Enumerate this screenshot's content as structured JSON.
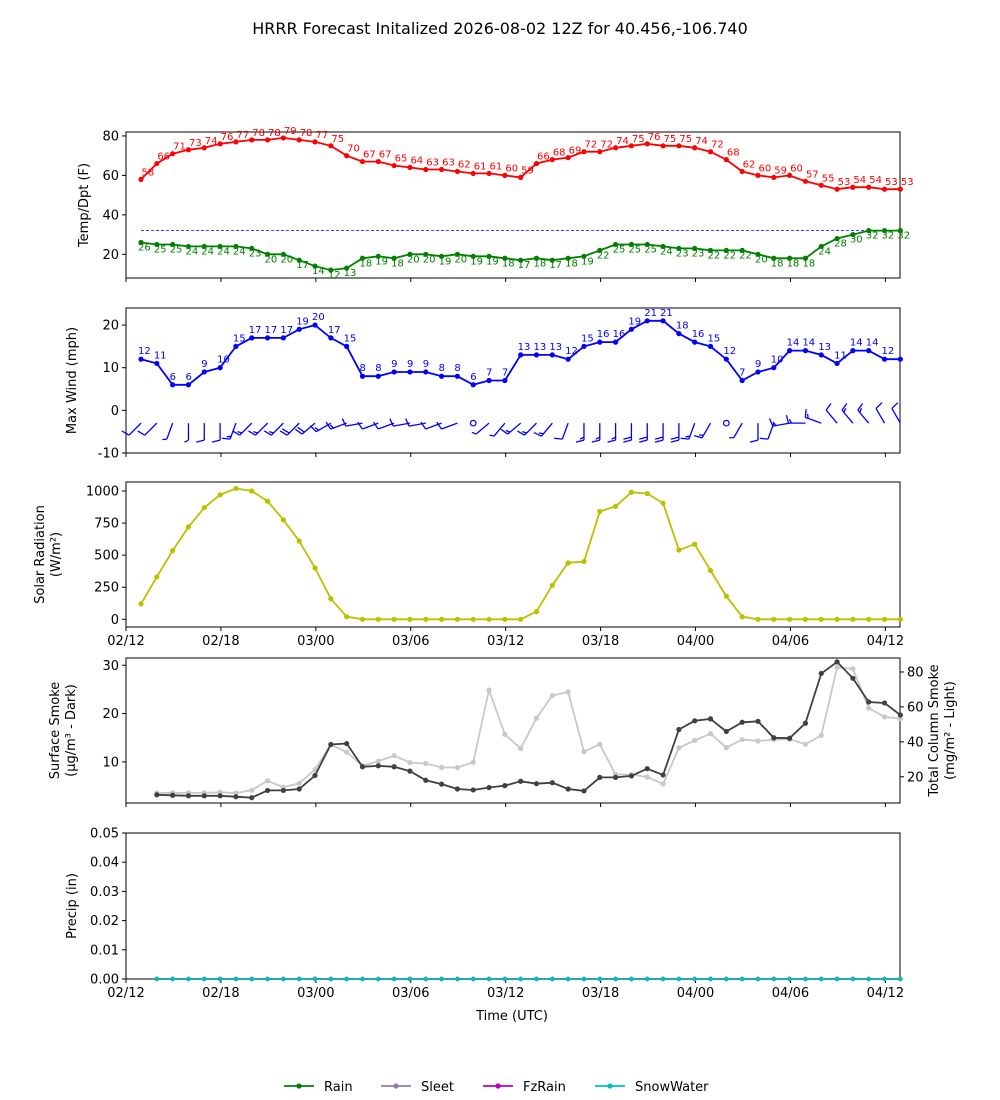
{
  "title": "HRRR Forecast Initalized 2026-08-02 12Z for 40.456,-106.740",
  "x_tick_labels": [
    "02/12",
    "02/18",
    "03/00",
    "03/06",
    "03/12",
    "03/18",
    "04/00",
    "04/06",
    "04/12"
  ],
  "x_label": "Time (UTC)",
  "colors": {
    "temp": "#ff0000",
    "dewpoint": "#008000",
    "wind": "#0000ff",
    "solar": "#bfbf00",
    "smoke_dark": "#404040",
    "smoke_light": "#c8c8c8",
    "rain": "#008000",
    "sleet": "#8c7ca8",
    "fzrain": "#c000c0",
    "snow": "#00bfbf"
  },
  "legend": [
    "Rain",
    "Sleet",
    "FzRain",
    "SnowWater"
  ],
  "chart_data": [
    {
      "type": "line",
      "ylabel": "Temp/Dpt (F)",
      "ylim": [
        8,
        82
      ],
      "yticks": [
        20,
        40,
        60,
        80
      ],
      "reference_line": 32,
      "x": [
        0,
        1,
        2,
        3,
        4,
        5,
        6,
        7,
        8,
        9,
        10,
        11,
        12,
        13,
        14,
        15,
        16,
        17,
        18,
        19,
        20,
        21,
        22,
        23,
        24,
        25,
        26,
        27,
        28,
        29,
        30,
        31,
        32,
        33,
        34,
        35,
        36,
        37,
        38,
        39,
        40,
        41,
        42,
        43,
        44,
        45,
        46,
        47,
        48
      ],
      "series": [
        {
          "id": "temperature",
          "labels_above": true,
          "values": [
            58,
            66,
            71,
            73,
            74,
            76,
            77,
            78,
            78,
            79,
            78,
            77,
            75,
            70,
            67,
            67,
            65,
            64,
            63,
            63,
            62,
            61,
            61,
            60,
            59,
            66,
            68,
            69,
            72,
            72,
            74,
            75,
            76,
            75,
            75,
            74,
            72,
            68,
            62,
            60,
            59,
            60,
            57,
            55,
            53,
            54,
            54,
            53,
            53
          ]
        },
        {
          "id": "dewpoint",
          "labels_above": false,
          "values": [
            26,
            25,
            25,
            24,
            24,
            24,
            24,
            23,
            20,
            20,
            17,
            14,
            12,
            13,
            18,
            19,
            18,
            20,
            20,
            19,
            20,
            19,
            19,
            18,
            17,
            18,
            17,
            18,
            19,
            22,
            25,
            25,
            25,
            24,
            23,
            23,
            22,
            22,
            22,
            20,
            18,
            18,
            18,
            24,
            28,
            30,
            32,
            32,
            32
          ]
        }
      ]
    },
    {
      "type": "line",
      "ylabel": "Max Wind (mph)",
      "ylim": [
        -10,
        24
      ],
      "yticks": [
        -10,
        0,
        10,
        20
      ],
      "x": [
        0,
        1,
        2,
        3,
        4,
        5,
        6,
        7,
        8,
        9,
        10,
        11,
        12,
        13,
        14,
        15,
        16,
        17,
        18,
        19,
        20,
        21,
        22,
        23,
        24,
        25,
        26,
        27,
        28,
        29,
        30,
        31,
        32,
        33,
        34,
        35,
        36,
        37,
        38,
        39,
        40,
        41,
        42,
        43,
        44,
        45,
        46,
        47,
        48
      ],
      "series": [
        {
          "id": "max_wind",
          "values": [
            12,
            11,
            6,
            6,
            9,
            10,
            15,
            17,
            17,
            17,
            19,
            20,
            17,
            15,
            8,
            8,
            9,
            9,
            9,
            8,
            8,
            6,
            7,
            7,
            13,
            13,
            13,
            12,
            15,
            16,
            16,
            19,
            21,
            21,
            18,
            16,
            15,
            12,
            7,
            9,
            10,
            14,
            14,
            13,
            11,
            14,
            14,
            12,
            12
          ],
          "labels": [
            "12",
            "11",
            "6",
            "6",
            "9",
            "10",
            "15",
            "17",
            "17",
            "17",
            "19",
            "20",
            "17",
            "15",
            "8",
            "8",
            "9",
            "9",
            "9",
            "8",
            "8",
            "6",
            "7",
            "7",
            "13",
            "13",
            "13",
            "12",
            "15",
            "16",
            "16",
            "19",
            "21",
            "21",
            "18",
            "16",
            "15",
            "12",
            "7",
            "9",
            "10",
            "14",
            "14",
            "13",
            "11",
            "14",
            "14",
            "12",
            ""
          ]
        }
      ],
      "wind_barbs": {
        "direction_deg": [
          225,
          225,
          200,
          180,
          180,
          180,
          200,
          225,
          225,
          225,
          225,
          230,
          240,
          250,
          260,
          250,
          250,
          260,
          260,
          250,
          250,
          null,
          230,
          220,
          230,
          225,
          220,
          200,
          180,
          180,
          180,
          180,
          180,
          180,
          180,
          200,
          210,
          null,
          210,
          180,
          200,
          260,
          270,
          290,
          320,
          320,
          320,
          330,
          330
        ],
        "speed_mph": [
          12,
          11,
          6,
          6,
          9,
          10,
          15,
          17,
          17,
          17,
          19,
          20,
          17,
          15,
          8,
          8,
          9,
          9,
          9,
          8,
          8,
          6,
          7,
          7,
          13,
          13,
          13,
          12,
          15,
          16,
          16,
          19,
          21,
          21,
          18,
          16,
          15,
          12,
          7,
          9,
          10,
          14,
          14,
          13,
          11,
          14,
          14,
          12,
          12
        ]
      }
    },
    {
      "type": "line",
      "ylabel": "Solar Radiation",
      "ylabel_units": "(W/m²)",
      "ylim": [
        -60,
        1070
      ],
      "yticks": [
        0,
        250,
        500,
        750,
        1000
      ],
      "x": [
        0,
        1,
        2,
        3,
        4,
        5,
        6,
        7,
        8,
        9,
        10,
        11,
        12,
        13,
        14,
        15,
        16,
        17,
        18,
        19,
        20,
        21,
        22,
        23,
        24,
        25,
        26,
        27,
        28,
        29,
        30,
        31,
        32,
        33,
        34,
        35,
        36,
        37,
        38,
        39,
        40,
        41,
        42,
        43,
        44,
        45,
        46,
        47,
        48
      ],
      "series": [
        {
          "id": "solar_radiation",
          "values": [
            120,
            330,
            535,
            720,
            870,
            970,
            1020,
            1000,
            920,
            775,
            610,
            400,
            160,
            20,
            0,
            0,
            0,
            0,
            0,
            0,
            0,
            0,
            0,
            0,
            0,
            60,
            265,
            440,
            450,
            840,
            880,
            990,
            980,
            905,
            540,
            585,
            380,
            180,
            20,
            0,
            0,
            0,
            0,
            0,
            0,
            0,
            0,
            0,
            0
          ]
        }
      ]
    },
    {
      "type": "line",
      "ylabel": "Surface Smoke",
      "ylabel_units": "(μg/m³ - Dark)",
      "ylabel_right": "Total Column Smoke",
      "ylabel_right_units": "(mg/m² - Light)",
      "ylim": [
        1.5,
        31.5
      ],
      "yticks": [
        10,
        20,
        30
      ],
      "ylim_right": [
        5,
        88
      ],
      "yticks_right": [
        20,
        40,
        60,
        80
      ],
      "x": [
        1,
        2,
        3,
        4,
        5,
        6,
        7,
        8,
        9,
        10,
        11,
        12,
        13,
        14,
        15,
        16,
        17,
        18,
        19,
        20,
        21,
        22,
        23,
        24,
        25,
        26,
        27,
        28,
        29,
        30,
        31,
        32,
        33,
        34,
        35,
        36,
        37,
        38,
        39,
        40,
        41,
        42,
        43,
        44,
        45,
        46,
        47,
        48
      ],
      "series": [
        {
          "id": "surface_smoke",
          "axis": "left",
          "values": [
            3.2,
            3.1,
            3.0,
            3.0,
            3.0,
            2.8,
            2.6,
            4.1,
            4.1,
            4.4,
            7.2,
            13.6,
            13.8,
            9.0,
            9.2,
            9.0,
            8.1,
            6.2,
            5.4,
            4.4,
            4.2,
            4.7,
            5.1,
            6.0,
            5.5,
            5.7,
            4.4,
            4.0,
            6.8,
            6.8,
            7.1,
            8.6,
            7.3,
            16.7,
            18.5,
            18.9,
            16.3,
            18.2,
            18.4,
            15.0,
            14.9,
            18.0,
            28.3,
            30.7,
            27.3,
            22.4,
            22.2,
            19.7
          ]
        },
        {
          "id": "total_column_smoke",
          "axis": "right",
          "values": [
            10.8,
            10.8,
            10.8,
            10.8,
            11.1,
            10.7,
            12.3,
            17.7,
            14.0,
            16.3,
            24.1,
            38.5,
            34.1,
            26.3,
            28.9,
            32.1,
            28.1,
            27.6,
            25.3,
            25.3,
            28.3,
            69.6,
            44.3,
            36.2,
            53.6,
            66.5,
            68.6,
            34.4,
            38.6,
            21.3,
            21.3,
            19.9,
            15.9,
            36.6,
            40.8,
            44.7,
            36.7,
            41.3,
            40.5,
            41.3,
            41.5,
            38.6,
            43.7,
            82.6,
            81.8,
            59.3,
            54.3,
            53.3
          ]
        }
      ]
    },
    {
      "type": "line",
      "ylabel": "Precip (in)",
      "ylim": [
        0,
        0.05
      ],
      "yticks": [
        "0.00",
        "0.01",
        "0.02",
        "0.03",
        "0.04",
        "0.05"
      ],
      "xlabel": "Time (UTC)",
      "x": [
        1,
        2,
        3,
        4,
        5,
        6,
        7,
        8,
        9,
        10,
        11,
        12,
        13,
        14,
        15,
        16,
        17,
        18,
        19,
        20,
        21,
        22,
        23,
        24,
        25,
        26,
        27,
        28,
        29,
        30,
        31,
        32,
        33,
        34,
        35,
        36,
        37,
        38,
        39,
        40,
        41,
        42,
        43,
        44,
        45,
        46,
        47,
        48
      ],
      "series": [
        {
          "id": "rain",
          "name": "Rain",
          "values": [
            0,
            0,
            0,
            0,
            0,
            0,
            0,
            0,
            0,
            0,
            0,
            0,
            0,
            0,
            0,
            0,
            0,
            0,
            0,
            0,
            0,
            0,
            0,
            0,
            0,
            0,
            0,
            0,
            0,
            0,
            0,
            0,
            0,
            0,
            0,
            0,
            0,
            0,
            0,
            0,
            0,
            0,
            0,
            0,
            0,
            0,
            0,
            0
          ]
        },
        {
          "id": "sleet",
          "name": "Sleet",
          "values": [
            0,
            0,
            0,
            0,
            0,
            0,
            0,
            0,
            0,
            0,
            0,
            0,
            0,
            0,
            0,
            0,
            0,
            0,
            0,
            0,
            0,
            0,
            0,
            0,
            0,
            0,
            0,
            0,
            0,
            0,
            0,
            0,
            0,
            0,
            0,
            0,
            0,
            0,
            0,
            0,
            0,
            0,
            0,
            0,
            0,
            0,
            0,
            0
          ]
        },
        {
          "id": "fzrain",
          "name": "FzRain",
          "values": [
            0,
            0,
            0,
            0,
            0,
            0,
            0,
            0,
            0,
            0,
            0,
            0,
            0,
            0,
            0,
            0,
            0,
            0,
            0,
            0,
            0,
            0,
            0,
            0,
            0,
            0,
            0,
            0,
            0,
            0,
            0,
            0,
            0,
            0,
            0,
            0,
            0,
            0,
            0,
            0,
            0,
            0,
            0,
            0,
            0,
            0,
            0,
            0
          ]
        },
        {
          "id": "snowwater",
          "name": "SnowWater",
          "values": [
            0,
            0,
            0,
            0,
            0,
            0,
            0,
            0,
            0,
            0,
            0,
            0,
            0,
            0,
            0,
            0,
            0,
            0,
            0,
            0,
            0,
            0,
            0,
            0,
            0,
            0,
            0,
            0,
            0,
            0,
            0,
            0,
            0,
            0,
            0,
            0,
            0,
            0,
            0,
            0,
            0,
            0,
            0,
            0,
            0,
            0,
            0,
            0
          ]
        }
      ]
    }
  ]
}
